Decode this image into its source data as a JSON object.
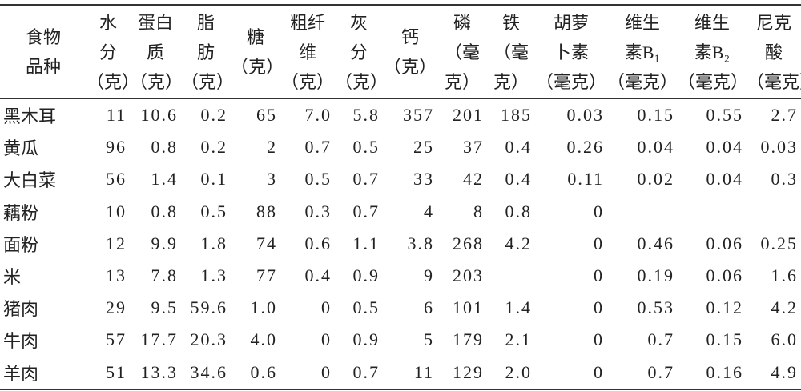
{
  "table": {
    "header": [
      [
        "食物",
        "品种"
      ],
      [
        "水",
        "分",
        "（克）"
      ],
      [
        "蛋白",
        "质",
        "（克）"
      ],
      [
        "脂",
        "肪",
        "（克）"
      ],
      [
        "糖",
        "（克）"
      ],
      [
        "粗纤",
        "维",
        "（克）"
      ],
      [
        "灰",
        "分",
        "（克）"
      ],
      [
        "钙",
        "（克）"
      ],
      [
        "磷",
        "（毫",
        "克）"
      ],
      [
        "铁",
        "（毫",
        "克）"
      ],
      [
        "胡萝",
        "卜素",
        "（毫克）"
      ],
      [
        "维生",
        "素B₁",
        "（毫克）"
      ],
      [
        "维生",
        "素B₂",
        "（毫克）"
      ],
      [
        "尼克",
        "酸",
        "（毫克）"
      ]
    ],
    "rows": [
      [
        "黑木耳",
        "11",
        "10.6",
        "0.2",
        "65",
        "7.0",
        "5.8",
        "357",
        "201",
        "185",
        "0.03",
        "0.15",
        "0.55",
        "2.7"
      ],
      [
        "黄瓜",
        "96",
        "0.8",
        "0.2",
        "2",
        "0.7",
        "0.5",
        "25",
        "37",
        "0.4",
        "0.26",
        "0.04",
        "0.04",
        "0.03"
      ],
      [
        "大白菜",
        "56",
        "1.4",
        "0.1",
        "3",
        "0.5",
        "0.7",
        "33",
        "42",
        "0.4",
        "0.11",
        "0.02",
        "0.04",
        "0.3"
      ],
      [
        "藕粉",
        "10",
        "0.8",
        "0.5",
        "88",
        "0.3",
        "0.7",
        "4",
        "8",
        "0.8",
        "0",
        null,
        null,
        null
      ],
      [
        "面粉",
        "12",
        "9.9",
        "1.8",
        "74",
        "0.6",
        "1.1",
        "3.8",
        "268",
        "4.2",
        "0",
        "0.46",
        "0.06",
        "0.25"
      ],
      [
        "米",
        "13",
        "7.8",
        "1.3",
        "77",
        "0.4",
        "0.9",
        "9",
        "203",
        null,
        "0",
        "0.19",
        "0.06",
        "1.6"
      ],
      [
        "猪肉",
        "29",
        "9.5",
        "59.6",
        "1.0",
        "0",
        "0.5",
        "6",
        "101",
        "1.4",
        "0",
        "0.53",
        "0.12",
        "4.2"
      ],
      [
        "牛肉",
        "57",
        "17.7",
        "20.3",
        "4.0",
        "0",
        "0.9",
        "5",
        "179",
        "2.1",
        "0",
        "0.7",
        "0.15",
        "6.0"
      ],
      [
        "羊肉",
        "51",
        "13.3",
        "34.6",
        "0.6",
        "0",
        "0.7",
        "11",
        "129",
        "2.0",
        "0",
        "0.7",
        "0.16",
        "4.9"
      ]
    ]
  }
}
